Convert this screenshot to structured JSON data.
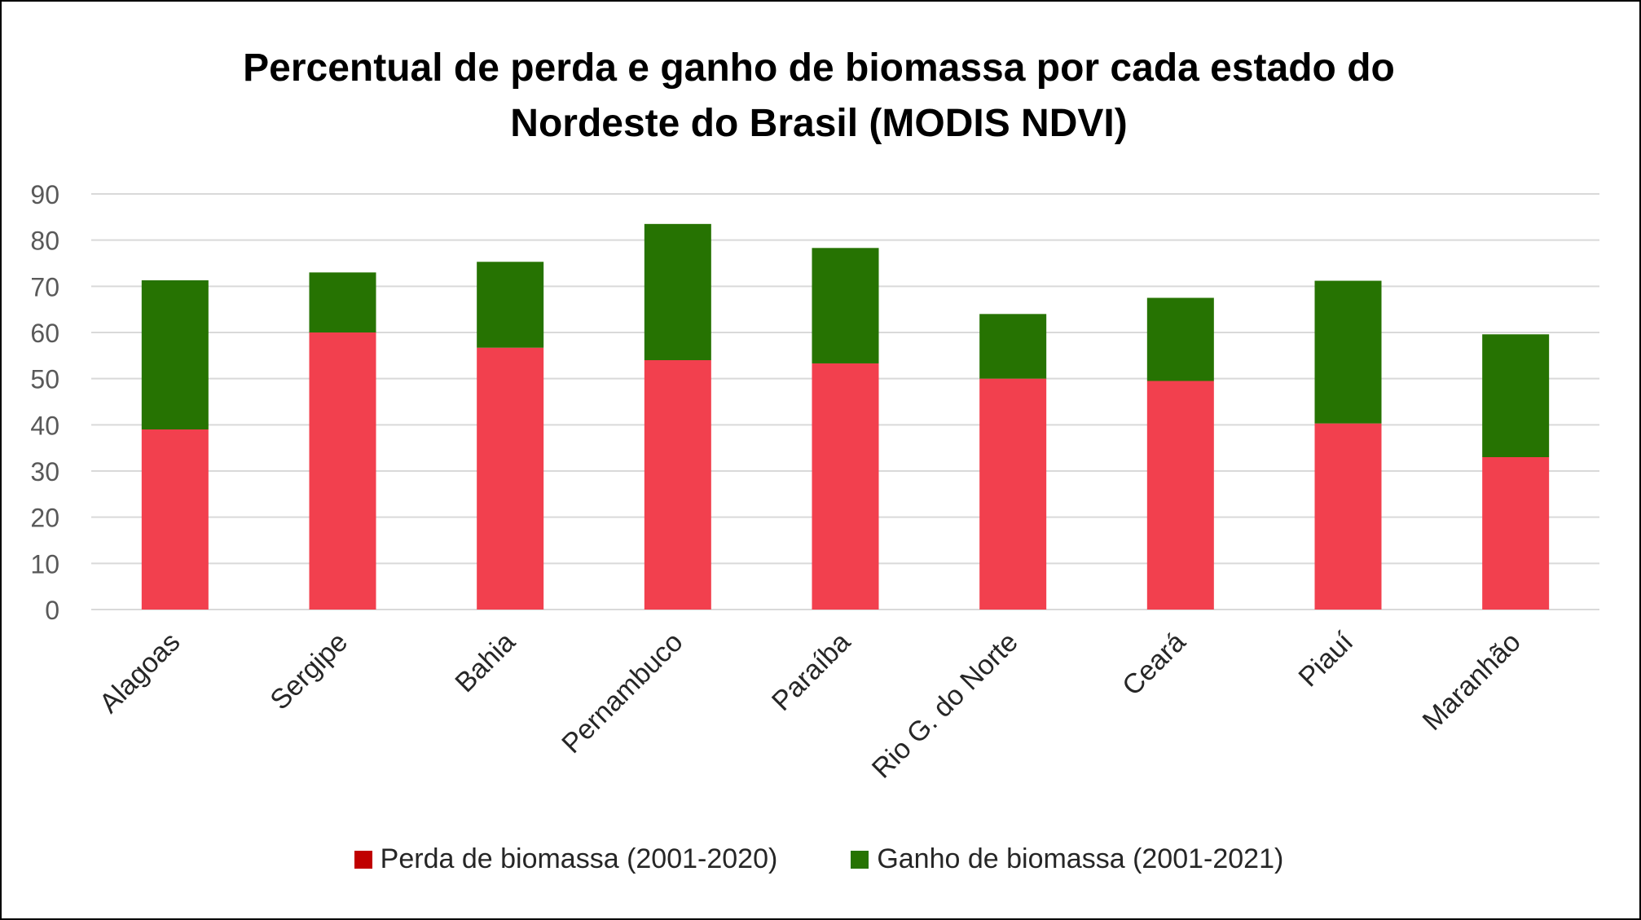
{
  "chart_data": {
    "type": "bar",
    "stacked": true,
    "title_lines": [
      "Percentual de perda e ganho de biomassa por cada estado do",
      "Nordeste do Brasil (MODIS NDVI)"
    ],
    "categories": [
      "Alagoas",
      "Sergipe",
      "Bahia",
      "Pernambuco",
      "Paraíba",
      "Rio G. do Norte",
      "Ceará",
      "Piauí",
      "Maranhão"
    ],
    "series": [
      {
        "name": "Perda de biomassa (2001-2020)",
        "values": [
          39,
          60,
          56.7,
          54,
          53.3,
          50,
          49.5,
          40.3,
          33
        ],
        "bar_color": "#f2404e",
        "legend_color": "#c00000"
      },
      {
        "name": "Ganho de biomassa (2001-2021)",
        "values": [
          32.3,
          13,
          18.6,
          29.5,
          25,
          14,
          18,
          30.9,
          26.6
        ],
        "bar_color": "#267302",
        "legend_color": "#267302"
      }
    ],
    "ylim": [
      0,
      90
    ],
    "yticks": [
      0,
      10,
      20,
      30,
      40,
      50,
      60,
      70,
      80,
      90
    ],
    "grid": true,
    "legend_position": "bottom"
  }
}
